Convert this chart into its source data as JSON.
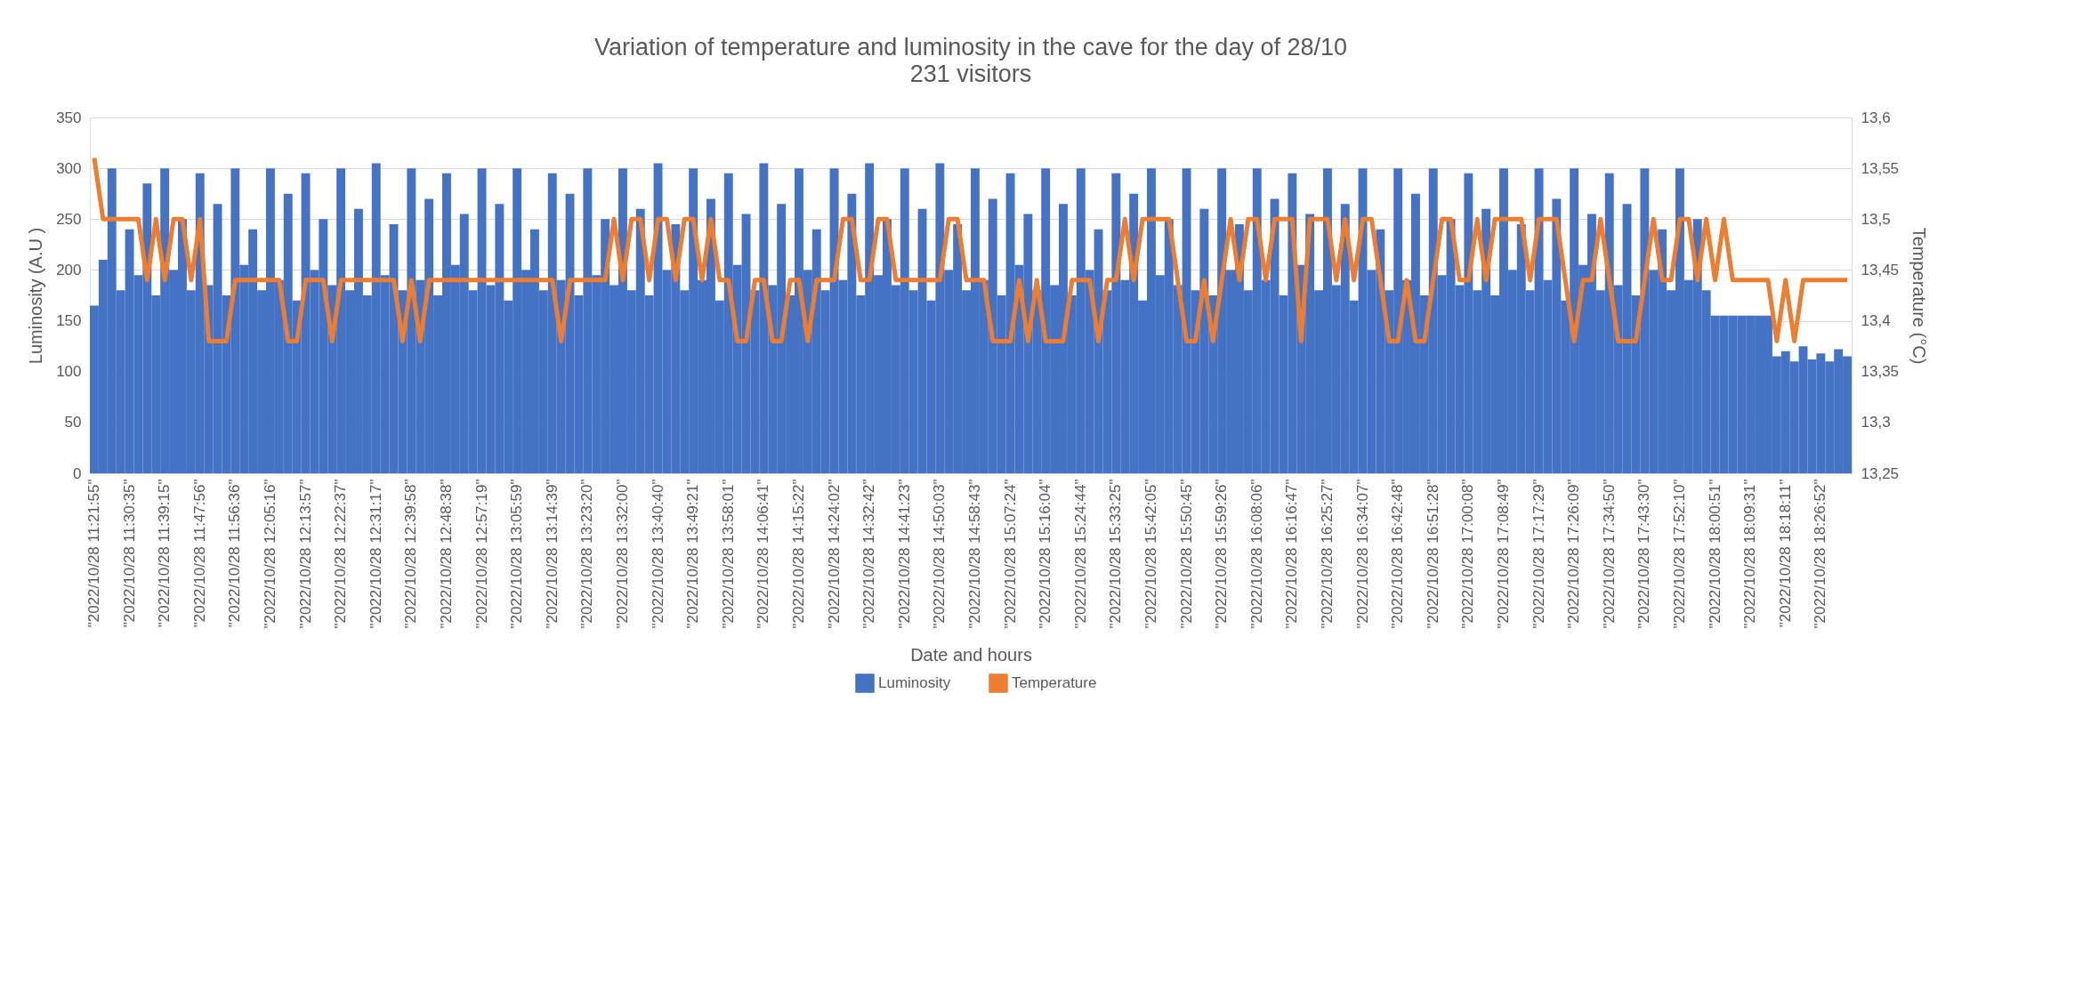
{
  "chart_data": {
    "type": "bar",
    "title": "Variation of temperature and luminosity in the cave for the day of 28/10",
    "subtitle": "231 visitors",
    "xlabel": "Date and hours",
    "ylabel": "Luminosity (A.U )",
    "y2label": "Temperature (°C)",
    "categories": [
      "\"2022/10/28 11:21:55\"",
      null,
      null,
      null,
      "\"2022/10/28 11:30:35\"",
      null,
      null,
      null,
      "\"2022/10/28 11:39:15\"",
      null,
      null,
      null,
      "\"2022/10/28 11:47:56\"",
      null,
      null,
      null,
      "\"2022/10/28 11:56:36\"",
      null,
      null,
      null,
      "\"2022/10/28 12:05:16\"",
      null,
      null,
      null,
      "\"2022/10/28 12:13:57\"",
      null,
      null,
      null,
      "\"2022/10/28 12:22:37\"",
      null,
      null,
      null,
      "\"2022/10/28 12:31:17\"",
      null,
      null,
      null,
      "\"2022/10/28 12:39:58\"",
      null,
      null,
      null,
      "\"2022/10/28 12:48:38\"",
      null,
      null,
      null,
      "\"2022/10/28 12:57:19\"",
      null,
      null,
      null,
      "\"2022/10/28 13:05:59\"",
      null,
      null,
      null,
      "\"2022/10/28 13:14:39\"",
      null,
      null,
      null,
      "\"2022/10/28 13:23:20\"",
      null,
      null,
      null,
      "\"2022/10/28 13:32:00\"",
      null,
      null,
      null,
      "\"2022/10/28 13:40:40\"",
      null,
      null,
      null,
      "\"2022/10/28 13:49:21\"",
      null,
      null,
      null,
      "\"2022/10/28 13:58:01\"",
      null,
      null,
      null,
      "\"2022/10/28 14:06:41\"",
      null,
      null,
      null,
      "\"2022/10/28 14:15:22\"",
      null,
      null,
      null,
      "\"2022/10/28 14:24:02\"",
      null,
      null,
      null,
      "\"2022/10/28 14:32:42\"",
      null,
      null,
      null,
      "\"2022/10/28 14:41:23\"",
      null,
      null,
      null,
      "\"2022/10/28 14:50:03\"",
      null,
      null,
      null,
      "\"2022/10/28 14:58:43\"",
      null,
      null,
      null,
      "\"2022/10/28 15:07:24\"",
      null,
      null,
      null,
      "\"2022/10/28 15:16:04\"",
      null,
      null,
      null,
      "\"2022/10/28 15:24:44\"",
      null,
      null,
      null,
      "\"2022/10/28 15:33:25\"",
      null,
      null,
      null,
      "\"2022/10/28 15:42:05\"",
      null,
      null,
      null,
      "\"2022/10/28 15:50:45\"",
      null,
      null,
      null,
      "\"2022/10/28 15:59:26\"",
      null,
      null,
      null,
      "\"2022/10/28 16:08:06\"",
      null,
      null,
      null,
      "\"2022/10/28 16:16:47\"",
      null,
      null,
      null,
      "\"2022/10/28 16:25:27\"",
      null,
      null,
      null,
      "\"2022/10/28 16:34:07\"",
      null,
      null,
      null,
      "\"2022/10/28 16:42:48\"",
      null,
      null,
      null,
      "\"2022/10/28 16:51:28\"",
      null,
      null,
      null,
      "\"2022/10/28 17:00:08\"",
      null,
      null,
      null,
      "\"2022/10/28 17:08:49\"",
      null,
      null,
      null,
      "\"2022/10/28 17:17:29\"",
      null,
      null,
      null,
      "\"2022/10/28 17:26:09\"",
      null,
      null,
      null,
      "\"2022/10/28 17:34:50\"",
      null,
      null,
      null,
      "\"2022/10/28 17:43:30\"",
      null,
      null,
      null,
      "\"2022/10/28 17:52:10\"",
      null,
      null,
      null,
      "\"2022/10/28 18:00:51\"",
      null,
      null,
      null,
      "\"2022/10/28 18:09:31\"",
      null,
      null,
      null,
      "\"2022/10/28 18:18:11\"",
      null,
      null,
      null,
      "\"2022/10/28 18:26:52\"",
      null,
      null,
      null
    ],
    "series": [
      {
        "name": "Luminosity",
        "color": "#4472c4",
        "values": [
          165,
          210,
          300,
          180,
          240,
          195,
          285,
          175,
          300,
          200,
          250,
          180,
          295,
          185,
          265,
          175,
          300,
          205,
          240,
          180,
          300,
          190,
          275,
          170,
          295,
          200,
          250,
          185,
          300,
          180,
          260,
          175,
          305,
          195,
          245,
          180,
          300,
          190,
          270,
          175,
          295,
          205,
          255,
          180,
          300,
          185,
          265,
          170,
          300,
          200,
          240,
          180,
          295,
          190,
          275,
          175,
          300,
          195,
          250,
          185,
          300,
          180,
          260,
          175,
          305,
          200,
          245,
          180,
          300,
          190,
          270,
          170,
          295,
          205,
          255,
          180,
          305,
          185,
          265,
          175,
          300,
          200,
          240,
          180,
          300,
          190,
          275,
          175,
          305,
          195,
          250,
          185,
          300,
          180,
          260,
          170,
          305,
          200,
          245,
          180,
          300,
          190,
          270,
          175,
          295,
          205,
          255,
          180,
          300,
          185,
          265,
          175,
          300,
          200,
          240,
          180,
          295,
          190,
          275,
          170,
          300,
          195,
          250,
          185,
          300,
          180,
          260,
          175,
          300,
          200,
          245,
          180,
          300,
          190,
          270,
          175,
          295,
          205,
          255,
          180,
          300,
          185,
          265,
          170,
          300,
          200,
          240,
          180,
          300,
          190,
          275,
          175,
          300,
          195,
          250,
          185,
          295,
          180,
          260,
          175,
          300,
          200,
          245,
          180,
          300,
          190,
          270,
          170,
          300,
          205,
          255,
          180,
          295,
          185,
          265,
          175,
          300,
          200,
          240,
          180,
          300,
          190,
          250,
          180,
          155,
          155,
          155,
          155,
          155,
          155,
          155,
          115,
          120,
          110,
          125,
          112,
          118,
          110,
          122,
          115
        ]
      },
      {
        "name": "Temperature",
        "type": "line",
        "axis": "y2",
        "color": "#ed7d31",
        "values": [
          13.56,
          13.5,
          13.5,
          13.5,
          13.5,
          13.5,
          13.44,
          13.5,
          13.44,
          13.5,
          13.5,
          13.44,
          13.5,
          13.38,
          13.38,
          13.38,
          13.44,
          13.44,
          13.44,
          13.44,
          13.44,
          13.44,
          13.38,
          13.38,
          13.44,
          13.44,
          13.44,
          13.38,
          13.44,
          13.44,
          13.44,
          13.44,
          13.44,
          13.44,
          13.44,
          13.38,
          13.44,
          13.38,
          13.44,
          13.44,
          13.44,
          13.44,
          13.44,
          13.44,
          13.44,
          13.44,
          13.44,
          13.44,
          13.44,
          13.44,
          13.44,
          13.44,
          13.44,
          13.38,
          13.44,
          13.44,
          13.44,
          13.44,
          13.44,
          13.5,
          13.44,
          13.5,
          13.5,
          13.44,
          13.5,
          13.5,
          13.44,
          13.5,
          13.5,
          13.44,
          13.5,
          13.44,
          13.44,
          13.38,
          13.38,
          13.44,
          13.44,
          13.38,
          13.38,
          13.44,
          13.44,
          13.38,
          13.44,
          13.44,
          13.44,
          13.5,
          13.5,
          13.44,
          13.44,
          13.5,
          13.5,
          13.44,
          13.44,
          13.44,
          13.44,
          13.44,
          13.44,
          13.5,
          13.5,
          13.44,
          13.44,
          13.44,
          13.38,
          13.38,
          13.38,
          13.44,
          13.38,
          13.44,
          13.38,
          13.38,
          13.38,
          13.44,
          13.44,
          13.44,
          13.38,
          13.44,
          13.44,
          13.5,
          13.44,
          13.5,
          13.5,
          13.5,
          13.5,
          13.44,
          13.38,
          13.38,
          13.44,
          13.38,
          13.44,
          13.5,
          13.44,
          13.5,
          13.5,
          13.44,
          13.5,
          13.5,
          13.5,
          13.38,
          13.5,
          13.5,
          13.5,
          13.44,
          13.5,
          13.44,
          13.5,
          13.5,
          13.44,
          13.38,
          13.38,
          13.44,
          13.38,
          13.38,
          13.44,
          13.5,
          13.5,
          13.44,
          13.44,
          13.5,
          13.44,
          13.5,
          13.5,
          13.5,
          13.5,
          13.44,
          13.5,
          13.5,
          13.5,
          13.44,
          13.38,
          13.44,
          13.44,
          13.5,
          13.44,
          13.38,
          13.38,
          13.38,
          13.44,
          13.5,
          13.44,
          13.44,
          13.5,
          13.5,
          13.44,
          13.5,
          13.44,
          13.5,
          13.44,
          13.44,
          13.44,
          13.44,
          13.44,
          13.38,
          13.44,
          13.38,
          13.44,
          13.44,
          13.44,
          13.44,
          13.44,
          13.44
        ]
      }
    ],
    "ylim": [
      0,
      350
    ],
    "yticks": [
      0,
      50,
      100,
      150,
      200,
      250,
      300,
      350
    ],
    "y2lim": [
      13.25,
      13.6
    ],
    "y2ticks": [
      {
        "value": 13.25,
        "label": "13,25"
      },
      {
        "value": 13.3,
        "label": "13,3"
      },
      {
        "value": 13.35,
        "label": "13,35"
      },
      {
        "value": 13.4,
        "label": "13,4"
      },
      {
        "value": 13.45,
        "label": "13,45"
      },
      {
        "value": 13.5,
        "label": "13,5"
      },
      {
        "value": 13.55,
        "label": "13,55"
      },
      {
        "value": 13.6,
        "label": "13,6"
      }
    ],
    "grid": "y",
    "legend": "bottom"
  }
}
